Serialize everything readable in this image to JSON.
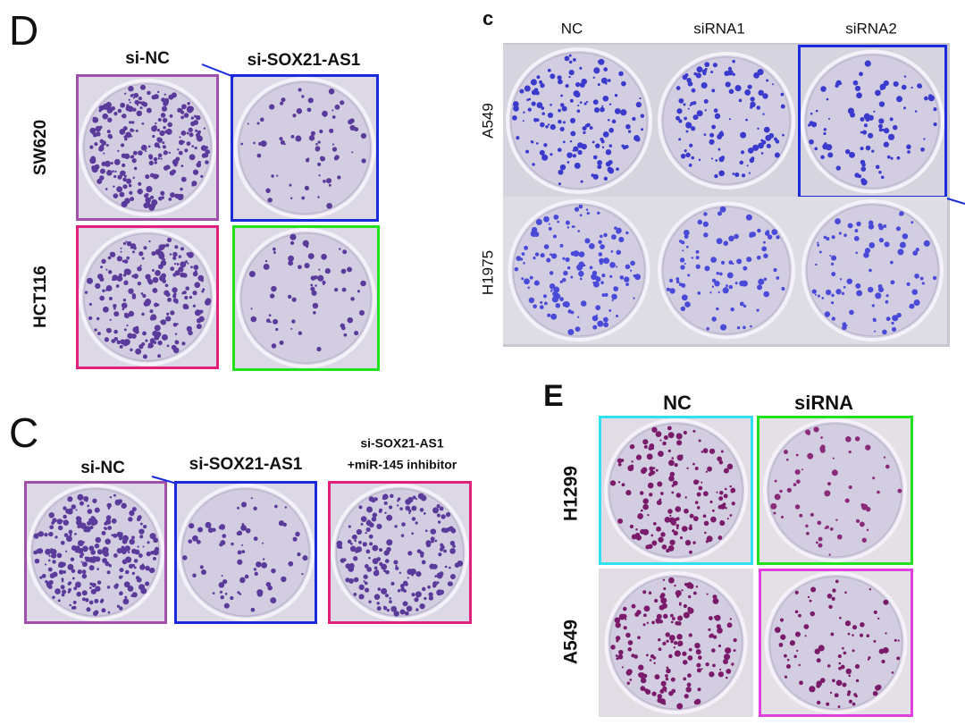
{
  "panels": [
    {
      "label": "D",
      "columns": [
        {
          "label": "si-NC"
        },
        {
          "label": "si-SOX21-AS1"
        }
      ],
      "rows": [
        "SW620",
        "HCT116"
      ]
    },
    {
      "label": "c",
      "columns": [
        {
          "label": "NC"
        },
        {
          "label": "siRNA1"
        },
        {
          "label": "siRNA2"
        }
      ],
      "rows": [
        "A549",
        "H1975"
      ]
    },
    {
      "label": "C",
      "columns": [
        {
          "label": "si-NC"
        },
        {
          "label": "si-SOX21-AS1"
        },
        {
          "label": "si-SOX21-AS1",
          "sublabel": "+miR-145 inhibitor"
        }
      ]
    },
    {
      "label": "E",
      "columns": [
        {
          "label": "NC"
        },
        {
          "label": "siRNA"
        }
      ],
      "rows": [
        "H1299",
        "A549"
      ]
    }
  ]
}
